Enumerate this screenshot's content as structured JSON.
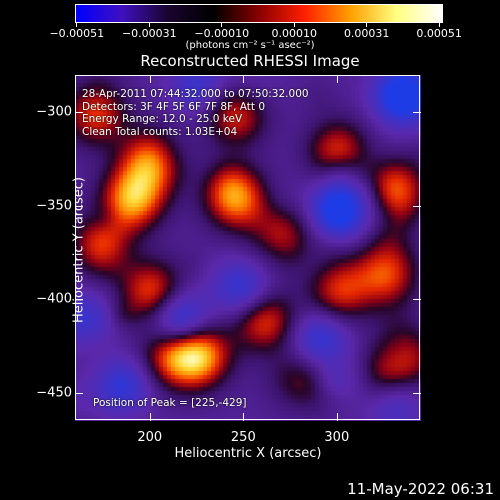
{
  "colorbar": {
    "tick_labels": [
      "-0.00051",
      "-0.00031",
      "-0.00010",
      "0.00010",
      "0.00031",
      "0.00051"
    ],
    "units": "(photons cm⁻² s⁻¹ asec⁻²)",
    "colors": [
      "#0000ff",
      "#4010c0",
      "#1a0530",
      "#000000",
      "#8a0000",
      "#ff2000",
      "#ffa000",
      "#ffff80",
      "#ffffff"
    ]
  },
  "chart_data": {
    "type": "heatmap",
    "title": "Reconstructed RHESSI Image",
    "xlabel": "Heliocentric X (arcsec)",
    "ylabel": "Heliocentric Y (arcsec)",
    "xlim": [
      160,
      345
    ],
    "ylim": [
      -465,
      -280
    ],
    "x_ticks": [
      200,
      250,
      300
    ],
    "y_ticks": [
      -300,
      -350,
      -400,
      -450
    ],
    "x_tick_labels": [
      "200",
      "250",
      "300"
    ],
    "y_tick_labels": [
      "-300",
      "-350",
      "-400",
      "-450"
    ],
    "info_lines": [
      "28-Apr-2011 07:44:32.000 to 07:50:32.000",
      "Detectors: 3F 4F 5F 6F 7F 8F, Att 0",
      "Energy Range: 12.0 - 25.0 keV",
      "Clean    Total counts: 1.03E+04"
    ],
    "peak_label": "Position of Peak = [225,-429]",
    "bright_regions": [
      {
        "x": 225,
        "y": -429,
        "level": 1.0
      },
      {
        "x": 190,
        "y": -345,
        "level": 0.95
      },
      {
        "x": 245,
        "y": -345,
        "level": 0.9
      },
      {
        "x": 200,
        "y": -325,
        "level": 0.85
      },
      {
        "x": 175,
        "y": -370,
        "level": 0.85
      },
      {
        "x": 330,
        "y": -340,
        "level": 0.8
      },
      {
        "x": 325,
        "y": -385,
        "level": 0.8
      },
      {
        "x": 260,
        "y": -410,
        "level": 0.75
      },
      {
        "x": 200,
        "y": -395,
        "level": 0.75
      },
      {
        "x": 170,
        "y": -300,
        "level": 0.7
      },
      {
        "x": 245,
        "y": -300,
        "level": 0.7
      },
      {
        "x": 300,
        "y": -320,
        "level": 0.7
      },
      {
        "x": 335,
        "y": -430,
        "level": 0.65
      },
      {
        "x": 280,
        "y": -445,
        "level": 0.6
      },
      {
        "x": 300,
        "y": -395,
        "level": 0.65
      },
      {
        "x": 270,
        "y": -365,
        "level": 0.55
      },
      {
        "x": 210,
        "y": -430,
        "level": 0.6
      }
    ],
    "dark_regions": [
      {
        "x": 335,
        "y": -290,
        "level": -1.0
      },
      {
        "x": 300,
        "y": -350,
        "level": -0.9
      },
      {
        "x": 215,
        "y": -410,
        "level": -0.8
      },
      {
        "x": 250,
        "y": -395,
        "level": -0.5
      },
      {
        "x": 290,
        "y": -420,
        "level": -0.6
      },
      {
        "x": 165,
        "y": -410,
        "level": -0.5
      },
      {
        "x": 225,
        "y": -285,
        "level": -0.5
      },
      {
        "x": 185,
        "y": -445,
        "level": -0.6
      },
      {
        "x": 330,
        "y": -455,
        "level": -0.4
      }
    ]
  },
  "timestamp": "11-May-2022 06:31"
}
